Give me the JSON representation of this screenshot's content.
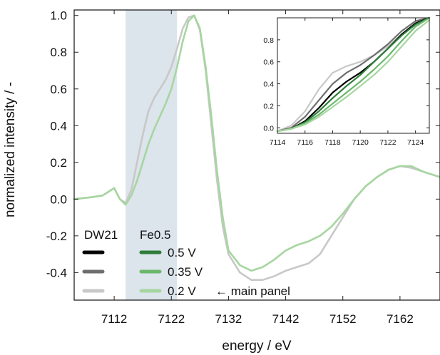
{
  "chart_data": [
    {
      "type": "line",
      "xlabel": "energy / eV",
      "ylabel": "normalized intensity / -",
      "xlim": [
        7105,
        7169
      ],
      "ylim": [
        -0.55,
        1.03
      ],
      "xticks": [
        7112,
        7122,
        7132,
        7142,
        7152,
        7162
      ],
      "yticks": [
        -0.4,
        -0.2,
        0.0,
        0.2,
        0.4,
        0.6,
        0.8,
        1.0
      ],
      "ytick_labels": [
        "-0.4",
        "-0.2",
        "0.0",
        "0.2",
        "0.4",
        "0.6",
        "0.8",
        "1.0"
      ],
      "highlight_region": {
        "x": [
          7114,
          7123
        ],
        "color": "#dce4ec"
      },
      "series": [
        {
          "name": "DW21 (0.2 V)",
          "color": "#c8c8c8",
          "x": [
            7105,
            7108,
            7110,
            7111,
            7112,
            7113,
            7114,
            7115,
            7116,
            7117,
            7118,
            7119,
            7120,
            7121,
            7122,
            7123,
            7124,
            7125,
            7126,
            7127,
            7128,
            7129,
            7130,
            7131,
            7132,
            7134,
            7136,
            7138,
            7140,
            7142,
            7144,
            7146,
            7148,
            7150,
            7152,
            7154,
            7156,
            7158,
            7160,
            7162,
            7164,
            7166,
            7169
          ],
          "y": [
            0.0,
            0.01,
            0.02,
            0.04,
            0.06,
            0.0,
            -0.02,
            0.05,
            0.2,
            0.35,
            0.48,
            0.55,
            0.6,
            0.65,
            0.72,
            0.82,
            0.93,
            0.99,
            1.0,
            0.92,
            0.7,
            0.4,
            0.1,
            -0.15,
            -0.3,
            -0.4,
            -0.44,
            -0.44,
            -0.42,
            -0.39,
            -0.37,
            -0.35,
            -0.3,
            -0.2,
            -0.1,
            0.0,
            0.07,
            0.12,
            0.16,
            0.18,
            0.17,
            0.15,
            0.12
          ]
        },
        {
          "name": "Fe0.5 (0.2 V)",
          "color": "#a6d6a0",
          "x": [
            7105,
            7108,
            7110,
            7111,
            7112,
            7113,
            7114,
            7115,
            7116,
            7117,
            7118,
            7119,
            7120,
            7121,
            7122,
            7123,
            7124,
            7125,
            7126,
            7127,
            7128,
            7129,
            7130,
            7131,
            7132,
            7134,
            7136,
            7138,
            7140,
            7142,
            7144,
            7146,
            7148,
            7150,
            7152,
            7154,
            7156,
            7158,
            7160,
            7162,
            7164,
            7166,
            7169
          ],
          "y": [
            0.0,
            0.01,
            0.02,
            0.04,
            0.06,
            0.0,
            -0.03,
            0.02,
            0.1,
            0.2,
            0.3,
            0.38,
            0.45,
            0.52,
            0.6,
            0.72,
            0.86,
            0.97,
            1.0,
            0.93,
            0.72,
            0.45,
            0.15,
            -0.1,
            -0.28,
            -0.36,
            -0.39,
            -0.37,
            -0.33,
            -0.28,
            -0.25,
            -0.23,
            -0.2,
            -0.15,
            -0.08,
            0.0,
            0.07,
            0.12,
            0.16,
            0.18,
            0.18,
            0.15,
            0.12
          ]
        }
      ]
    },
    {
      "type": "line",
      "xlim": [
        7114,
        7125
      ],
      "ylim": [
        -0.05,
        1.0
      ],
      "xticks": [
        7114,
        7116,
        7118,
        7120,
        7122,
        7124
      ],
      "yticks": [
        0.0,
        0.2,
        0.4,
        0.6,
        0.8
      ],
      "ytick_labels": [
        "0.0",
        "0.2",
        "0.4",
        "0.6",
        "0.8"
      ],
      "series": [
        {
          "name": "DW21 (0.2 V)",
          "color": "#c8c8c8",
          "x": [
            7114,
            7115,
            7116,
            7117,
            7118,
            7119,
            7120,
            7121,
            7122,
            7123,
            7124,
            7125
          ],
          "y": [
            -0.03,
            0.02,
            0.15,
            0.35,
            0.5,
            0.56,
            0.6,
            0.66,
            0.74,
            0.85,
            0.95,
            1.0
          ]
        },
        {
          "name": "DW21 (0.35 V)",
          "color": "#6e6e6e",
          "x": [
            7114,
            7115,
            7116,
            7117,
            7118,
            7119,
            7120,
            7121,
            7122,
            7123,
            7124,
            7125
          ],
          "y": [
            -0.03,
            0.0,
            0.1,
            0.25,
            0.4,
            0.5,
            0.57,
            0.66,
            0.76,
            0.88,
            0.97,
            1.0
          ]
        },
        {
          "name": "DW21 (0.5 V)",
          "color": "#000000",
          "x": [
            7114,
            7115,
            7116,
            7117,
            7118,
            7119,
            7120,
            7121,
            7122,
            7123,
            7124,
            7125
          ],
          "y": [
            -0.03,
            -0.01,
            0.06,
            0.18,
            0.32,
            0.42,
            0.5,
            0.6,
            0.72,
            0.85,
            0.95,
            1.0
          ]
        },
        {
          "name": "Fe0.5 (0.5 V)",
          "color": "#2e7d3a",
          "x": [
            7114,
            7115,
            7116,
            7117,
            7118,
            7119,
            7120,
            7121,
            7122,
            7123,
            7124,
            7125
          ],
          "y": [
            -0.03,
            -0.01,
            0.05,
            0.15,
            0.27,
            0.38,
            0.48,
            0.6,
            0.72,
            0.84,
            0.94,
            1.0
          ]
        },
        {
          "name": "Fe0.5 (0.35 V)",
          "color": "#6bb86b",
          "x": [
            7114,
            7115,
            7116,
            7117,
            7118,
            7119,
            7120,
            7121,
            7122,
            7123,
            7124,
            7125
          ],
          "y": [
            -0.03,
            -0.01,
            0.04,
            0.12,
            0.22,
            0.32,
            0.42,
            0.53,
            0.65,
            0.79,
            0.92,
            1.0
          ]
        },
        {
          "name": "Fe0.5 (0.2 V)",
          "color": "#a6d6a0",
          "x": [
            7114,
            7115,
            7116,
            7117,
            7118,
            7119,
            7120,
            7121,
            7122,
            7123,
            7124,
            7125
          ],
          "y": [
            -0.03,
            -0.01,
            0.03,
            0.1,
            0.19,
            0.28,
            0.38,
            0.48,
            0.6,
            0.74,
            0.88,
            0.98
          ]
        }
      ]
    }
  ],
  "legend": {
    "header_left": "DW21",
    "header_right": "Fe0.5",
    "rows": [
      {
        "left_color": "#000000",
        "right_color": "#2e7d3a",
        "label": "0.5 V",
        "note": ""
      },
      {
        "left_color": "#6e6e6e",
        "right_color": "#6bb86b",
        "label": "0.35 V",
        "note": ""
      },
      {
        "left_color": "#c8c8c8",
        "right_color": "#a6d6a0",
        "label": "0.2 V",
        "note": "← main panel"
      }
    ]
  }
}
